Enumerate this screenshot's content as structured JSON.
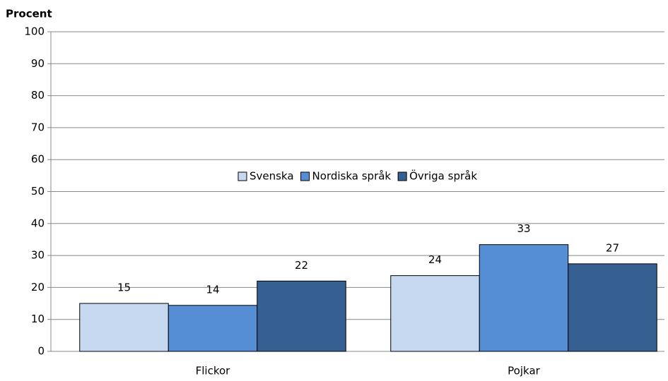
{
  "chart_data": {
    "type": "bar",
    "y_label": "Procent",
    "categories": [
      "Flickor",
      "Pojkar"
    ],
    "series": [
      {
        "name": "Svenska",
        "color": "#c6d9f1",
        "values": [
          15,
          23.7
        ],
        "value_labels": [
          "15",
          "24"
        ]
      },
      {
        "name": "Nordiska språk",
        "color": "#558ed5",
        "values": [
          14.4,
          33.4
        ],
        "value_labels": [
          "14",
          "33"
        ]
      },
      {
        "name": "Övriga språk",
        "color": "#366092",
        "values": [
          22,
          27.4
        ],
        "value_labels": [
          "22",
          "27"
        ]
      }
    ],
    "ylim": [
      0,
      100
    ],
    "yticks": [
      0,
      10,
      20,
      30,
      40,
      50,
      60,
      70,
      80,
      90,
      100
    ],
    "grid": true,
    "legend": "center"
  }
}
